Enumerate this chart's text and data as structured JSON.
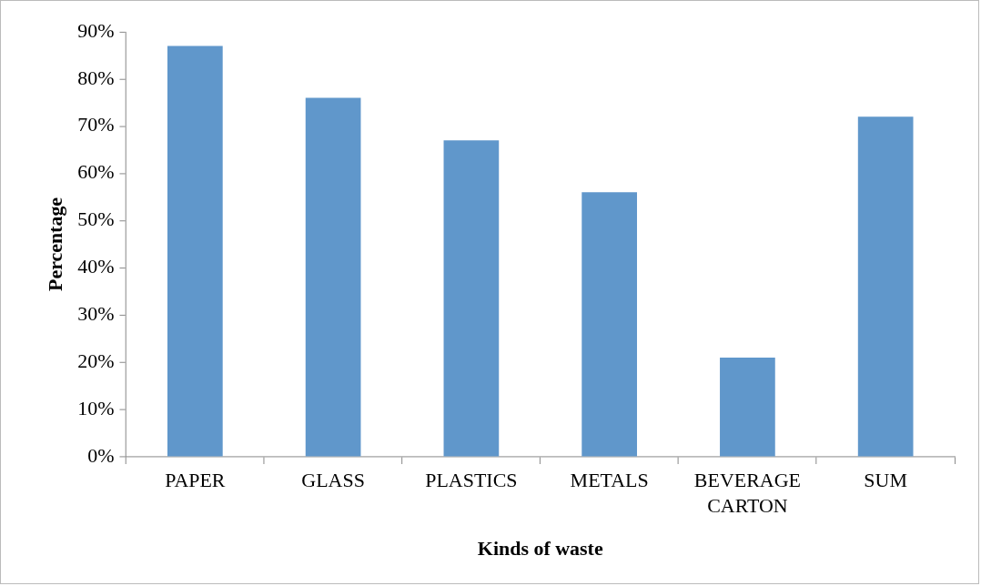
{
  "chart_data": {
    "type": "bar",
    "xlabel": "Kinds of waste",
    "ylabel": "Percentage",
    "categories": [
      "PAPER",
      "GLASS",
      "PLASTICS",
      "METALS",
      "BEVERAGE CARTON",
      "SUM"
    ],
    "values": [
      87,
      76,
      67,
      56,
      21,
      72
    ],
    "color": "#6097cb",
    "ylim": [
      0,
      90
    ],
    "yticks": [
      {
        "value": 0,
        "label": "0%"
      },
      {
        "value": 10,
        "label": "10%"
      },
      {
        "value": 20,
        "label": "20%"
      },
      {
        "value": 30,
        "label": "30%"
      },
      {
        "value": 40,
        "label": "40%"
      },
      {
        "value": 50,
        "label": "50%"
      },
      {
        "value": 60,
        "label": "60%"
      },
      {
        "value": 70,
        "label": "70%"
      },
      {
        "value": 80,
        "label": "80%"
      },
      {
        "value": 90,
        "label": "90%"
      }
    ],
    "grid": false,
    "legend": false
  }
}
